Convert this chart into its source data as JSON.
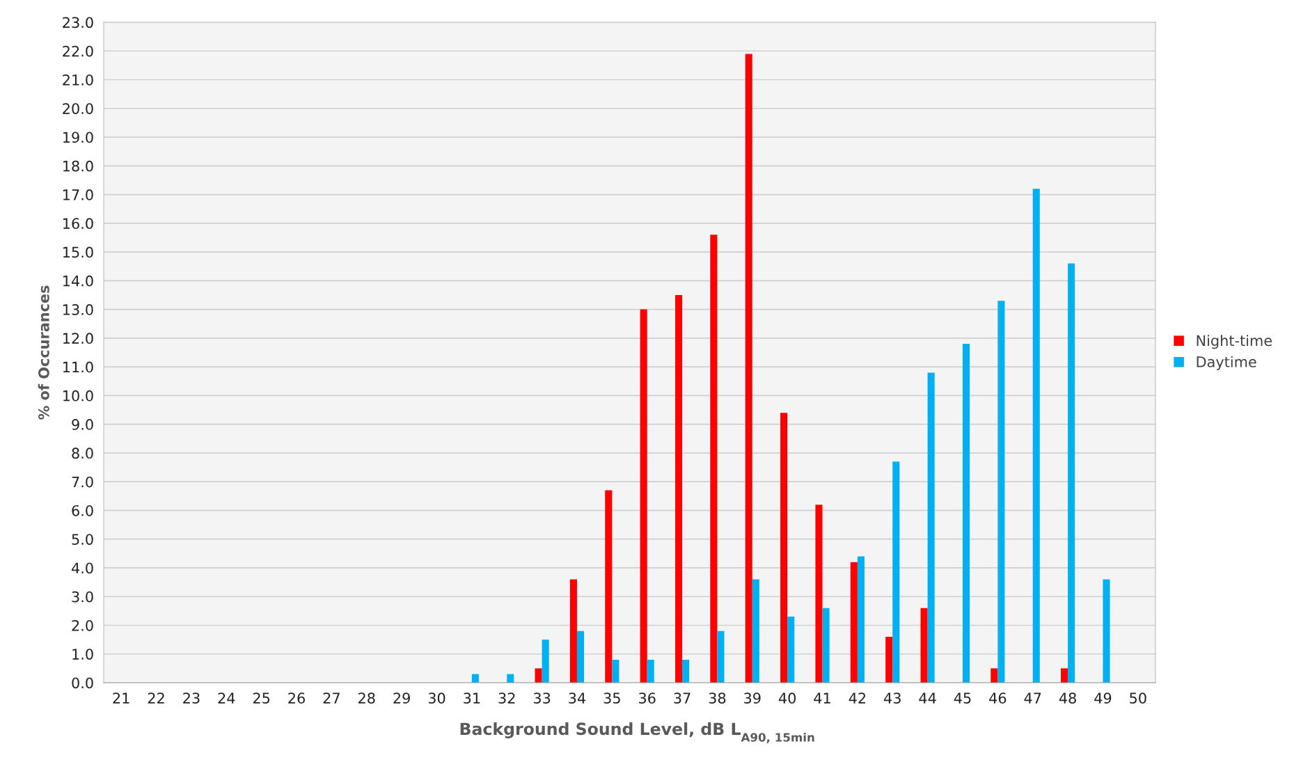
{
  "chart_data": {
    "type": "bar",
    "xlabel": "Background Sound Level, dB L$_{A90, 15min}$",
    "ylabel": "% of Occurances",
    "categories": [
      "21",
      "22",
      "23",
      "24",
      "25",
      "26",
      "27",
      "28",
      "29",
      "30",
      "31",
      "32",
      "33",
      "34",
      "35",
      "36",
      "37",
      "38",
      "39",
      "40",
      "41",
      "42",
      "43",
      "44",
      "45",
      "46",
      "47",
      "48",
      "49",
      "50"
    ],
    "series": [
      {
        "name": "Night-time",
        "color": "#ff0000",
        "values": [
          null,
          null,
          null,
          null,
          null,
          null,
          null,
          null,
          null,
          null,
          null,
          null,
          0.5,
          3.6,
          6.7,
          13.0,
          13.5,
          15.6,
          21.9,
          9.4,
          6.2,
          4.2,
          1.6,
          2.6,
          null,
          0.5,
          null,
          0.5,
          null,
          null
        ]
      },
      {
        "name": "Daytime",
        "color": "#00b0f0",
        "values": [
          null,
          null,
          null,
          null,
          null,
          null,
          null,
          null,
          null,
          null,
          0.3,
          0.3,
          1.5,
          1.8,
          0.8,
          0.8,
          0.8,
          1.8,
          3.6,
          2.3,
          2.6,
          4.4,
          7.7,
          10.8,
          11.8,
          13.3,
          17.2,
          14.6,
          3.6,
          null
        ]
      }
    ],
    "ylim": [
      0,
      23
    ],
    "yticks": [
      {
        "value": 0,
        "label": "0.0"
      },
      {
        "value": 1,
        "label": "1.0"
      },
      {
        "value": 2,
        "label": "2.0"
      },
      {
        "value": 3,
        "label": "3.0"
      },
      {
        "value": 4,
        "label": "4.0"
      },
      {
        "value": 5,
        "label": "5.0"
      },
      {
        "value": 6,
        "label": "6.0"
      },
      {
        "value": 7,
        "label": "7.0"
      },
      {
        "value": 8,
        "label": "8.0"
      },
      {
        "value": 9,
        "label": "9.0"
      },
      {
        "value": 10,
        "label": "10.0"
      },
      {
        "value": 11,
        "label": "11.0"
      },
      {
        "value": 12,
        "label": "12.0"
      },
      {
        "value": 13,
        "label": "13.0"
      },
      {
        "value": 14,
        "label": "14.0"
      },
      {
        "value": 15,
        "label": "15.0"
      },
      {
        "value": 16,
        "label": "16.0"
      },
      {
        "value": 17,
        "label": "17.0"
      },
      {
        "value": 18,
        "label": "18.0"
      },
      {
        "value": 19,
        "label": "19.0"
      },
      {
        "value": 20,
        "label": "20.0"
      },
      {
        "value": 21,
        "label": "21.0"
      },
      {
        "value": 22,
        "label": "22.0"
      },
      {
        "value": 23,
        "label": "23.0"
      }
    ],
    "grid": "y",
    "legend": "right"
  }
}
